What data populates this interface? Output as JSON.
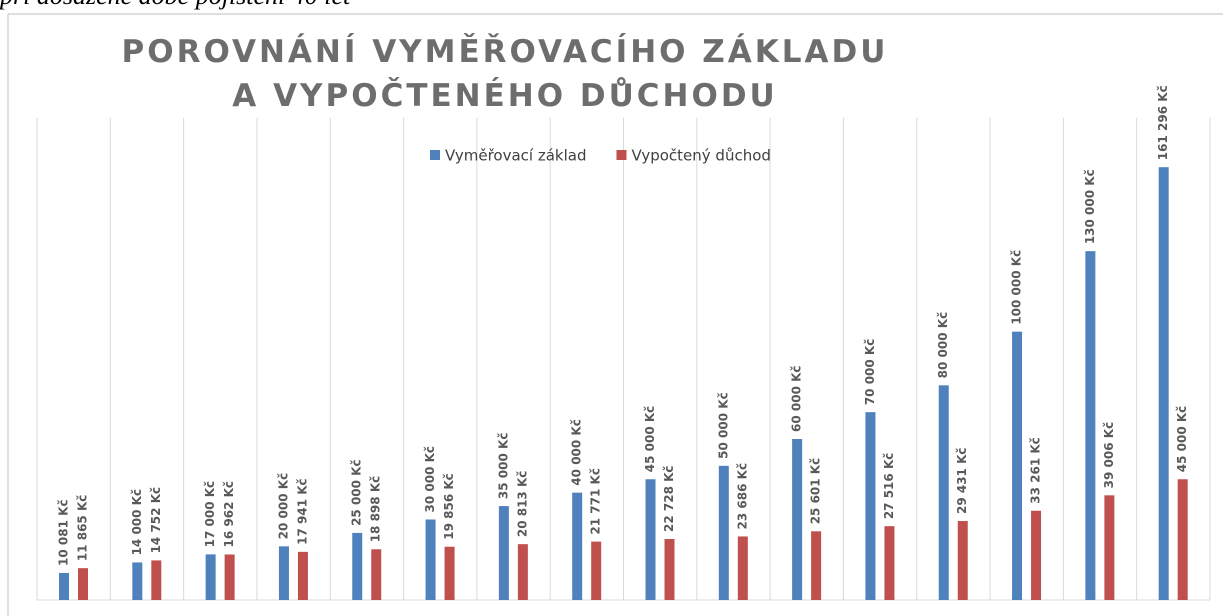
{
  "caption": "při dosažené době pojištění 40 let",
  "chart_data": {
    "type": "bar",
    "title": [
      "POROVNÁNÍ VYMĚŘOVACÍHO ZÁKLADU",
      "A VYPOČTENÉHO DŮCHODU"
    ],
    "ylim": [
      0,
      180000
    ],
    "legend": "top",
    "series": [
      {
        "name": "Vyměřovací základ",
        "color": "#4f81bd",
        "values": [
          10081,
          14000,
          17000,
          20000,
          25000,
          30000,
          35000,
          40000,
          45000,
          50000,
          60000,
          70000,
          80000,
          100000,
          130000,
          161296
        ],
        "value_labels": [
          "10 081 Kč",
          "14 000 Kč",
          "17 000 Kč",
          "20 000 Kč",
          "25 000 Kč",
          "30 000 Kč",
          "35 000 Kč",
          "40 000 Kč",
          "45 000 Kč",
          "50 000 Kč",
          "60 000 Kč",
          "70 000 Kč",
          "80 000 Kč",
          "100 000 Kč",
          "130 000 Kč",
          "161 296 Kč"
        ]
      },
      {
        "name": "Vypočtený důchod",
        "color": "#c0504d",
        "values": [
          11865,
          14752,
          16962,
          17941,
          18898,
          19856,
          20813,
          21771,
          22728,
          23686,
          25601,
          27516,
          29431,
          33261,
          39006,
          45000
        ],
        "value_labels": [
          "11 865 Kč",
          "14 752 Kč",
          "16 962 Kč",
          "17 941 Kč",
          "18 898 Kč",
          "19 856 Kč",
          "20 813 Kč",
          "21 771 Kč",
          "22 728 Kč",
          "23 686 Kč",
          "25 601 Kč",
          "27 516 Kč",
          "29 431 Kč",
          "33 261 Kč",
          "39 006 Kč",
          "45 000 Kč"
        ]
      }
    ]
  }
}
